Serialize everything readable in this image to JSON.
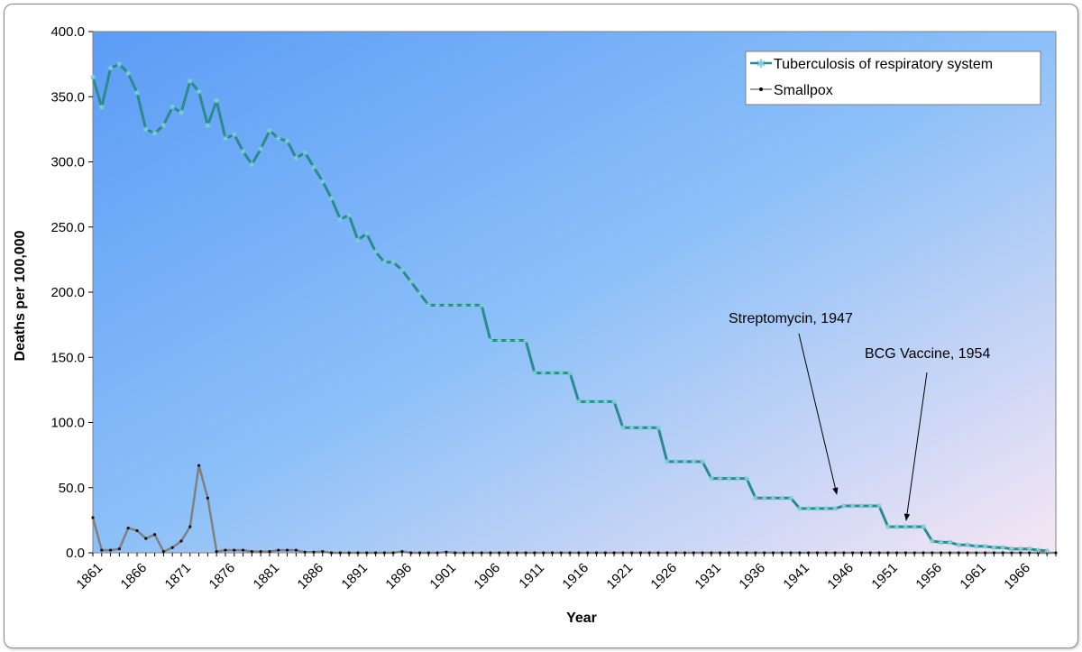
{
  "chart_data": {
    "type": "line",
    "title": "",
    "xlabel": "Year",
    "ylabel": "Deaths per 100,000",
    "ylim": [
      0,
      400
    ],
    "xlim": [
      1861,
      1970
    ],
    "y_ticks": [
      "0.0",
      "50.0",
      "100.0",
      "150.0",
      "200.0",
      "250.0",
      "300.0",
      "350.0",
      "400.0"
    ],
    "x_ticks": [
      "1861",
      "1866",
      "1871",
      "1876",
      "1881",
      "1886",
      "1891",
      "1896",
      "1901",
      "1906",
      "1911",
      "1916",
      "1921",
      "1926",
      "1931",
      "1936",
      "1941",
      "1946",
      "1951",
      "1956",
      "1961",
      "1966"
    ],
    "grid": false,
    "legend_position": "top-right",
    "series": [
      {
        "name": "Tuberculosis of respiratory system",
        "color": "#2a8a8e",
        "marker": "star",
        "x": [
          1861,
          1862,
          1863,
          1864,
          1865,
          1866,
          1867,
          1868,
          1869,
          1870,
          1871,
          1872,
          1873,
          1874,
          1875,
          1876,
          1877,
          1878,
          1879,
          1880,
          1881,
          1882,
          1883,
          1884,
          1885,
          1886,
          1887,
          1888,
          1889,
          1890,
          1891,
          1892,
          1893,
          1894,
          1895,
          1896,
          1897,
          1898,
          1899,
          1900,
          1901,
          1902,
          1903,
          1904,
          1905,
          1906,
          1907,
          1908,
          1909,
          1910,
          1911,
          1912,
          1913,
          1914,
          1915,
          1916,
          1917,
          1918,
          1919,
          1920,
          1921,
          1922,
          1923,
          1924,
          1925,
          1926,
          1927,
          1928,
          1929,
          1930,
          1931,
          1932,
          1933,
          1934,
          1935,
          1936,
          1937,
          1938,
          1939,
          1940,
          1941,
          1942,
          1943,
          1944,
          1945,
          1946,
          1947,
          1948,
          1949,
          1950,
          1951,
          1952,
          1953,
          1954,
          1955,
          1956,
          1957,
          1958,
          1959,
          1960,
          1961,
          1962,
          1963,
          1964,
          1965,
          1966,
          1967,
          1968,
          1969
        ],
        "values": [
          365,
          342,
          372,
          375,
          368,
          353,
          325,
          322,
          328,
          342,
          338,
          362,
          354,
          328,
          347,
          318,
          321,
          308,
          298,
          310,
          324,
          318,
          316,
          303,
          307,
          296,
          285,
          272,
          256,
          259,
          240,
          245,
          231,
          223,
          223,
          217,
          208,
          199,
          190,
          190,
          190,
          190,
          190,
          190,
          190,
          163,
          163,
          163,
          163,
          163,
          138,
          138,
          138,
          138,
          138,
          116,
          116,
          116,
          116,
          116,
          96,
          96,
          96,
          96,
          96,
          70,
          70,
          70,
          70,
          70,
          57,
          57,
          57,
          57,
          57,
          42,
          42,
          42,
          42,
          42,
          34,
          34,
          34,
          34,
          34,
          36,
          36,
          36,
          36,
          36,
          20,
          20,
          20,
          20,
          20,
          9,
          8,
          8,
          6,
          6,
          5,
          5,
          4,
          4,
          3,
          3,
          3,
          2,
          1.5
        ]
      },
      {
        "name": "Smallpox",
        "color": "#808080",
        "marker": "dot",
        "x": [
          1861,
          1862,
          1863,
          1864,
          1865,
          1866,
          1867,
          1868,
          1869,
          1870,
          1871,
          1872,
          1873,
          1874,
          1875,
          1876,
          1877,
          1878,
          1879,
          1880,
          1881,
          1882,
          1883,
          1884,
          1885,
          1886,
          1887,
          1888,
          1889,
          1890,
          1891,
          1892,
          1893,
          1894,
          1895,
          1896,
          1897,
          1898,
          1899,
          1900,
          1901,
          1902,
          1903,
          1904,
          1905,
          1906,
          1907,
          1908,
          1909,
          1910,
          1911,
          1912,
          1913,
          1914,
          1915,
          1916,
          1917,
          1918,
          1919,
          1920,
          1921,
          1922,
          1923,
          1924,
          1925,
          1926,
          1927,
          1928,
          1929,
          1930,
          1931,
          1932,
          1933,
          1934,
          1935,
          1936,
          1937,
          1938,
          1939,
          1940,
          1941,
          1942,
          1943,
          1944,
          1945,
          1946,
          1947,
          1948,
          1949,
          1950,
          1951,
          1952,
          1953,
          1954,
          1955,
          1956,
          1957,
          1958,
          1959,
          1960,
          1961,
          1962,
          1963,
          1964,
          1965,
          1966,
          1967,
          1968,
          1969,
          1970
        ],
        "values": [
          27,
          2,
          2,
          3,
          19,
          17,
          11,
          14,
          1,
          4,
          9,
          20,
          67,
          42,
          1,
          2,
          2,
          2,
          1,
          1,
          1,
          2,
          2,
          2,
          0.5,
          0.5,
          1,
          0,
          0,
          0,
          0,
          0,
          0,
          0,
          0,
          1,
          0,
          0,
          0,
          0,
          0.5,
          0,
          0,
          0,
          0,
          0,
          0,
          0,
          0,
          0,
          0,
          0,
          0,
          0,
          0,
          0,
          0,
          0,
          0,
          0,
          0,
          0,
          0,
          0,
          0,
          0,
          0,
          0,
          0,
          0,
          0,
          0,
          0,
          0,
          0,
          0,
          0,
          0,
          0,
          0,
          0,
          0,
          0,
          0,
          0,
          0,
          0,
          0,
          0,
          0,
          0,
          0,
          0,
          0,
          0,
          0,
          0,
          0,
          0,
          0,
          0,
          0,
          0,
          0,
          0,
          0,
          0,
          0,
          0,
          0
        ]
      }
    ],
    "annotations": [
      {
        "text": "Streptomycin, 1947",
        "year": 1947,
        "value": 36
      },
      {
        "text": "BCG Vaccine, 1954",
        "year": 1954,
        "value": 24
      }
    ]
  }
}
